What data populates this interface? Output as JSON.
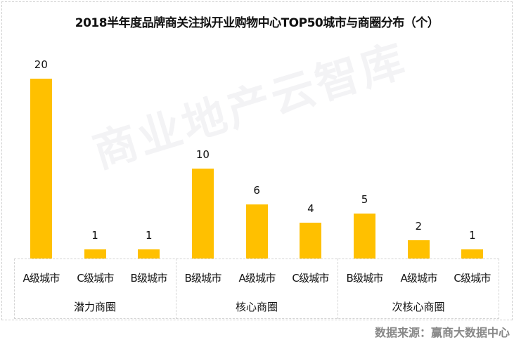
{
  "chart_data": {
    "type": "bar",
    "title": "2018半年度品牌商关注拟开业购物中心TOP50城市与商圈分布（个）",
    "xlabel": "",
    "ylabel": "",
    "grid": false,
    "legend": null,
    "groups": [
      {
        "name": "潜力商圈",
        "categories": [
          "A级城市",
          "C级城市",
          "B级城市"
        ],
        "values": [
          20,
          1,
          1
        ]
      },
      {
        "name": "核心商圈",
        "categories": [
          "B级城市",
          "A级城市",
          "C级城市"
        ],
        "values": [
          10,
          6,
          4
        ]
      },
      {
        "name": "次核心商圈",
        "categories": [
          "B级城市",
          "A级城市",
          "C级城市"
        ],
        "values": [
          5,
          2,
          1
        ]
      }
    ],
    "categories": [
      "A级城市",
      "C级城市",
      "B级城市",
      "B级城市",
      "A级城市",
      "C级城市",
      "B级城市",
      "A级城市",
      "C级城市"
    ],
    "values": [
      20,
      1,
      1,
      10,
      6,
      4,
      5,
      2,
      1
    ],
    "bar_color": "#FFC000",
    "ylim": [
      0,
      20
    ]
  },
  "labels": {
    "title": "2018半年度品牌商关注拟开业购物中心TOP50城市与商圈分布（个）",
    "watermark": "商业地产云智库",
    "source": "数据来源：赢商大数据中心",
    "values": [
      "20",
      "1",
      "1",
      "10",
      "6",
      "4",
      "5",
      "2",
      "1"
    ],
    "categories": [
      "A级城市",
      "C级城市",
      "B级城市",
      "B级城市",
      "A级城市",
      "C级城市",
      "B级城市",
      "A级城市",
      "C级城市"
    ],
    "groups": [
      "潜力商圈",
      "核心商圈",
      "次核心商圈"
    ]
  }
}
